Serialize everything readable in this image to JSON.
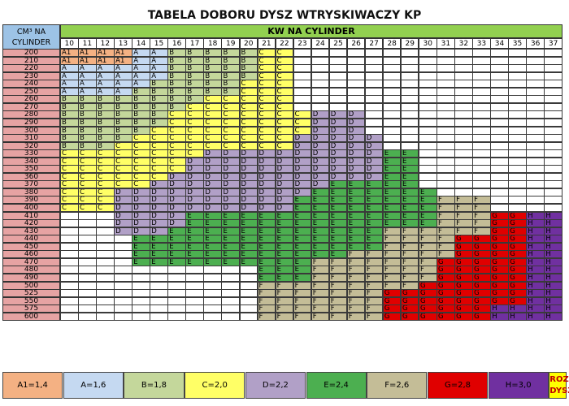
{
  "title": "TABELA DOBORU DYSZ WTRYSKIWACZY KP",
  "header_left_line1": "CM³ NA",
  "header_left_line2": "CYLINDER",
  "header_top": "KW NA CYLINDER",
  "chart_data": {
    "type": "table",
    "title": "TABELA DOBORU DYSZ WTRYSKIWACZY KP",
    "row_header": "CM³ NA CYLINDER",
    "column_header": "KW NA CYLINDER",
    "kw_columns": [
      10,
      11,
      12,
      13,
      14,
      15,
      16,
      17,
      18,
      19,
      20,
      21,
      22,
      23,
      24,
      25,
      26,
      27,
      28,
      29,
      30,
      31,
      32,
      33,
      34,
      35,
      36,
      37
    ],
    "rows": [
      {
        "cm3": "200",
        "cells": [
          "A1",
          "A1",
          "A1",
          "A1",
          "A",
          "A",
          "B",
          "B",
          "B",
          "B",
          "B",
          "C",
          "C"
        ]
      },
      {
        "cm3": "210",
        "cells": [
          "A1",
          "A1",
          "A1",
          "A1",
          "A",
          "A",
          "B",
          "B",
          "B",
          "B",
          "B",
          "C",
          "C"
        ]
      },
      {
        "cm3": "220",
        "cells": [
          "A",
          "A",
          "A",
          "A",
          "A",
          "A",
          "B",
          "B",
          "B",
          "B",
          "B",
          "C",
          "C"
        ]
      },
      {
        "cm3": "230",
        "cells": [
          "A",
          "A",
          "A",
          "A",
          "A",
          "A",
          "B",
          "B",
          "B",
          "B",
          "B",
          "C",
          "C"
        ]
      },
      {
        "cm3": "240",
        "cells": [
          "A",
          "A",
          "A",
          "A",
          "A",
          "B",
          "B",
          "B",
          "B",
          "B",
          "C",
          "C",
          "C"
        ]
      },
      {
        "cm3": "250",
        "cells": [
          "A",
          "A",
          "A",
          "A",
          "B",
          "B",
          "B",
          "B",
          "B",
          "B",
          "C",
          "C",
          "C"
        ]
      },
      {
        "cm3": "260",
        "cells": [
          "B",
          "B",
          "B",
          "B",
          "B",
          "B",
          "B",
          "B",
          "C",
          "C",
          "C",
          "C",
          "C"
        ]
      },
      {
        "cm3": "270",
        "cells": [
          "B",
          "B",
          "B",
          "B",
          "B",
          "B",
          "B",
          "C",
          "C",
          "C",
          "C",
          "C",
          "C"
        ]
      },
      {
        "cm3": "280",
        "cells": [
          "B",
          "B",
          "B",
          "B",
          "B",
          "B",
          "C",
          "C",
          "C",
          "C",
          "C",
          "C",
          "C",
          "C",
          "D",
          "D",
          "D"
        ]
      },
      {
        "cm3": "290",
        "cells": [
          "B",
          "B",
          "B",
          "B",
          "B",
          "B",
          "C",
          "C",
          "C",
          "C",
          "C",
          "C",
          "C",
          "C",
          "D",
          "D",
          "D"
        ]
      },
      {
        "cm3": "300",
        "cells": [
          "B",
          "B",
          "B",
          "B",
          "B",
          "C",
          "C",
          "C",
          "C",
          "C",
          "C",
          "C",
          "C",
          "C",
          "D",
          "D",
          "D"
        ]
      },
      {
        "cm3": "310",
        "cells": [
          "B",
          "B",
          "B",
          "B",
          "C",
          "C",
          "C",
          "C",
          "C",
          "C",
          "C",
          "C",
          "C",
          "D",
          "D",
          "D",
          "D",
          "D"
        ]
      },
      {
        "cm3": "320",
        "cells": [
          "B",
          "B",
          "B",
          "C",
          "C",
          "C",
          "C",
          "C",
          "C",
          "C",
          "C",
          "C",
          "C",
          "D",
          "D",
          "D",
          "D",
          "D"
        ]
      },
      {
        "cm3": "330",
        "cells": [
          "C",
          "C",
          "C",
          "C",
          "C",
          "C",
          "C",
          "C",
          "D",
          "D",
          "D",
          "D",
          "D",
          "D",
          "D",
          "D",
          "D",
          "D",
          "E",
          "E"
        ]
      },
      {
        "cm3": "340",
        "cells": [
          "C",
          "C",
          "C",
          "C",
          "C",
          "C",
          "C",
          "D",
          "D",
          "D",
          "D",
          "D",
          "D",
          "D",
          "D",
          "D",
          "D",
          "D",
          "E",
          "E"
        ]
      },
      {
        "cm3": "350",
        "cells": [
          "C",
          "C",
          "C",
          "C",
          "C",
          "C",
          "C",
          "D",
          "D",
          "D",
          "D",
          "D",
          "D",
          "D",
          "D",
          "D",
          "D",
          "D",
          "E",
          "E"
        ]
      },
      {
        "cm3": "360",
        "cells": [
          "C",
          "C",
          "C",
          "C",
          "C",
          "C",
          "D",
          "D",
          "D",
          "D",
          "D",
          "D",
          "D",
          "D",
          "D",
          "D",
          "D",
          "D",
          "E",
          "E"
        ]
      },
      {
        "cm3": "370",
        "cells": [
          "C",
          "C",
          "C",
          "C",
          "C",
          "D",
          "D",
          "D",
          "D",
          "D",
          "D",
          "D",
          "D",
          "D",
          "D",
          "E",
          "E",
          "E",
          "E",
          "E"
        ]
      },
      {
        "cm3": "380",
        "cells": [
          "C",
          "C",
          "C",
          "D",
          "D",
          "D",
          "D",
          "D",
          "D",
          "D",
          "D",
          "D",
          "D",
          "D",
          "E",
          "E",
          "E",
          "E",
          "E",
          "E",
          "E"
        ]
      },
      {
        "cm3": "390",
        "cells": [
          "C",
          "C",
          "C",
          "D",
          "D",
          "D",
          "D",
          "D",
          "D",
          "D",
          "D",
          "D",
          "D",
          "E",
          "E",
          "E",
          "E",
          "E",
          "E",
          "E",
          "E",
          "F",
          "F",
          "F"
        ]
      },
      {
        "cm3": "400",
        "cells": [
          "C",
          "C",
          "C",
          "D",
          "D",
          "D",
          "D",
          "D",
          "D",
          "D",
          "D",
          "D",
          "D",
          "E",
          "E",
          "E",
          "E",
          "E",
          "E",
          "E",
          "E",
          "F",
          "F",
          "F"
        ]
      },
      {
        "cm3": "410",
        "cells": [
          "",
          "",
          "",
          "D",
          "D",
          "D",
          "D",
          "E",
          "E",
          "E",
          "E",
          "E",
          "E",
          "E",
          "E",
          "E",
          "E",
          "E",
          "E",
          "E",
          "E",
          "F",
          "F",
          "F",
          "G",
          "G",
          "H",
          "H"
        ]
      },
      {
        "cm3": "420",
        "cells": [
          "",
          "",
          "",
          "D",
          "D",
          "D",
          "D",
          "E",
          "E",
          "E",
          "E",
          "E",
          "E",
          "E",
          "E",
          "E",
          "E",
          "E",
          "E",
          "E",
          "E",
          "F",
          "F",
          "F",
          "G",
          "G",
          "H",
          "H"
        ]
      },
      {
        "cm3": "430",
        "cells": [
          "",
          "",
          "",
          "D",
          "D",
          "D",
          "E",
          "E",
          "E",
          "E",
          "E",
          "E",
          "E",
          "E",
          "E",
          "E",
          "E",
          "E",
          "F",
          "F",
          "F",
          "F",
          "F",
          "F",
          "G",
          "G",
          "H",
          "H"
        ]
      },
      {
        "cm3": "440",
        "cells": [
          "",
          "",
          "",
          "",
          "E",
          "E",
          "E",
          "E",
          "E",
          "E",
          "E",
          "E",
          "E",
          "E",
          "E",
          "E",
          "E",
          "E",
          "F",
          "F",
          "F",
          "F",
          "G",
          "G",
          "G",
          "G",
          "H",
          "H"
        ]
      },
      {
        "cm3": "450",
        "cells": [
          "",
          "",
          "",
          "",
          "E",
          "E",
          "E",
          "E",
          "E",
          "E",
          "E",
          "E",
          "E",
          "E",
          "E",
          "E",
          "E",
          "E",
          "F",
          "F",
          "F",
          "F",
          "G",
          "G",
          "G",
          "G",
          "H",
          "H"
        ]
      },
      {
        "cm3": "460",
        "cells": [
          "",
          "",
          "",
          "",
          "E",
          "E",
          "E",
          "E",
          "E",
          "E",
          "E",
          "E",
          "E",
          "E",
          "E",
          "E",
          "F",
          "F",
          "F",
          "F",
          "F",
          "F",
          "G",
          "G",
          "G",
          "G",
          "H",
          "H"
        ]
      },
      {
        "cm3": "470",
        "cells": [
          "",
          "",
          "",
          "",
          "E",
          "E",
          "E",
          "E",
          "E",
          "E",
          "E",
          "E",
          "E",
          "E",
          "F",
          "F",
          "F",
          "F",
          "F",
          "F",
          "F",
          "G",
          "G",
          "G",
          "G",
          "G",
          "H",
          "H"
        ]
      },
      {
        "cm3": "480",
        "cells": [
          "",
          "",
          "",
          "",
          "",
          "",
          "",
          "",
          "",
          "",
          "",
          "E",
          "E",
          "E",
          "F",
          "F",
          "F",
          "F",
          "F",
          "F",
          "F",
          "G",
          "G",
          "G",
          "G",
          "G",
          "H",
          "H"
        ]
      },
      {
        "cm3": "490",
        "cells": [
          "",
          "",
          "",
          "",
          "",
          "",
          "",
          "",
          "",
          "",
          "",
          "E",
          "E",
          "E",
          "F",
          "F",
          "F",
          "F",
          "F",
          "F",
          "F",
          "G",
          "G",
          "G",
          "G",
          "G",
          "H",
          "H"
        ]
      },
      {
        "cm3": "500",
        "cells": [
          "",
          "",
          "",
          "",
          "",
          "",
          "",
          "",
          "",
          "",
          "",
          "F",
          "F",
          "F",
          "F",
          "F",
          "F",
          "F",
          "F",
          "F",
          "G",
          "G",
          "G",
          "G",
          "G",
          "G",
          "H",
          "H"
        ]
      },
      {
        "cm3": "525",
        "cells": [
          "",
          "",
          "",
          "",
          "",
          "",
          "",
          "",
          "",
          "",
          "",
          "F",
          "F",
          "F",
          "F",
          "F",
          "F",
          "F",
          "G",
          "G",
          "G",
          "G",
          "G",
          "G",
          "G",
          "G",
          "H",
          "H"
        ]
      },
      {
        "cm3": "550",
        "cells": [
          "",
          "",
          "",
          "",
          "",
          "",
          "",
          "",
          "",
          "",
          "",
          "F",
          "F",
          "F",
          "F",
          "F",
          "F",
          "F",
          "G",
          "G",
          "G",
          "G",
          "G",
          "G",
          "G",
          "G",
          "H",
          "H"
        ]
      },
      {
        "cm3": "575",
        "cells": [
          "",
          "",
          "",
          "",
          "",
          "",
          "",
          "",
          "",
          "",
          "",
          "F",
          "F",
          "F",
          "F",
          "F",
          "F",
          "F",
          "G",
          "G",
          "G",
          "G",
          "G",
          "G",
          "H",
          "H",
          "H",
          "H"
        ]
      },
      {
        "cm3": "600",
        "cells": [
          "",
          "",
          "",
          "",
          "",
          "",
          "",
          "",
          "",
          "",
          "",
          "F",
          "F",
          "F",
          "F",
          "F",
          "F",
          "F",
          "G",
          "G",
          "G",
          "G",
          "G",
          "G",
          "H",
          "H",
          "H",
          "H"
        ]
      }
    ],
    "legend": [
      {
        "code": "A1",
        "label": "A1=1,4",
        "color": "#f4b183"
      },
      {
        "code": "A",
        "label": "A=1,6",
        "color": "#c5d9f1"
      },
      {
        "code": "B",
        "label": "B=1,8",
        "color": "#c4d79b"
      },
      {
        "code": "C",
        "label": "C=2,0",
        "color": "#ffff66"
      },
      {
        "code": "D",
        "label": "D=2,2",
        "color": "#b1a0c7"
      },
      {
        "code": "E",
        "label": "E=2,4",
        "color": "#4caf50"
      },
      {
        "code": "F",
        "label": "F=2,6",
        "color": "#c4bd97"
      },
      {
        "code": "G",
        "label": "G=2,8",
        "color": "#e00000"
      },
      {
        "code": "H",
        "label": "H=3,0",
        "color": "#7030a0"
      }
    ],
    "legend_special_line1": "ROZMIAR",
    "legend_special_line2": "DYSZ",
    "legend_special_color": "#ffff00",
    "row_header_color": "#e6a3a3"
  }
}
